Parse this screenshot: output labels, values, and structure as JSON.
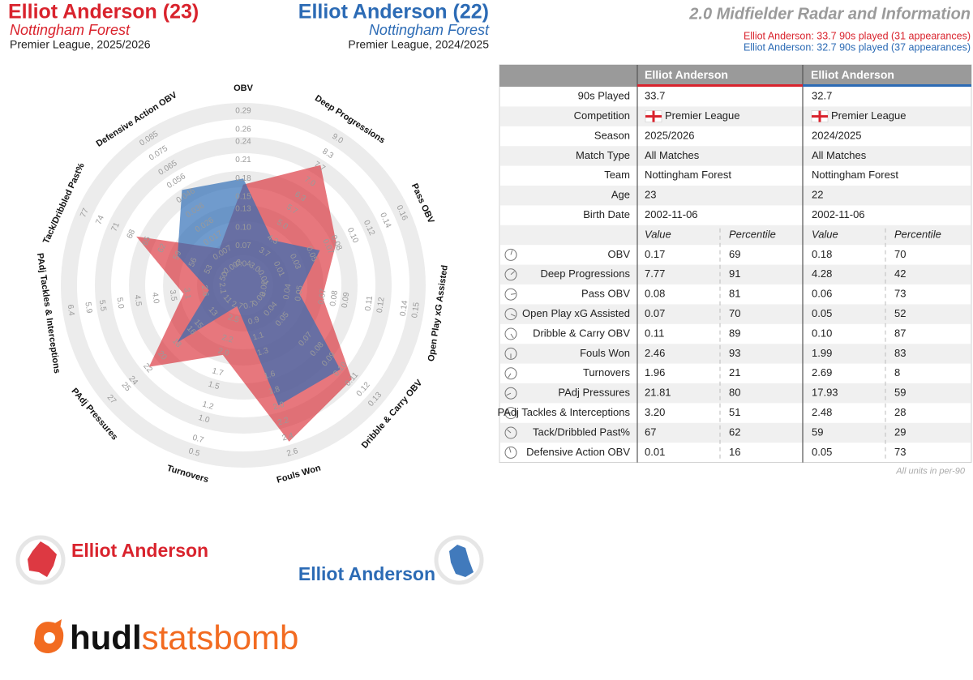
{
  "header": {
    "left": {
      "name": "Elliot Anderson (23)",
      "team": "Nottingham Forest",
      "competition": "Premier League, 2025/2026"
    },
    "right": {
      "name": "Elliot Anderson (22)",
      "team": "Nottingham Forest",
      "competition": "Premier League, 2024/2025"
    },
    "title": "2.0 Midfielder Radar and Information",
    "subtitles": [
      "Elliot Anderson: 33.7 90s played (31 appearances)",
      "Elliot Anderson: 32.7 90s played (37 appearances)"
    ]
  },
  "chart_data": {
    "type": "radar",
    "axes": [
      {
        "label": "OBV",
        "lim": [
          0.04,
          0.29
        ],
        "ticks": [
          0.04,
          0.07,
          {
            "value": 0.1,
            "label": "0.10"
          },
          0.13,
          0.15,
          0.18,
          0.21,
          0.24,
          0.26,
          0.29
        ]
      },
      {
        "label": "Deep Progressions",
        "lim": [
          3,
          9
        ],
        "ticks": [
          {
            "value": 3,
            "label": "3.0"
          },
          3.7,
          4.3,
          {
            "value": 5,
            "label": "5.0"
          },
          5.7,
          6.3,
          {
            "value": 7,
            "label": "7.0"
          },
          7.7,
          8.3,
          {
            "value": 9,
            "label": "9.0"
          }
        ]
      },
      {
        "label": "Pass OBV",
        "lim": [
          -0.01,
          0.16
        ],
        "ticks": [
          -0.01,
          0.01,
          0.03,
          0.05,
          0.07,
          0.08,
          {
            "value": 0.1,
            "label": "0.10"
          },
          0.12,
          0.14,
          0.16
        ]
      },
      {
        "label": "Open Play xG Assisted",
        "lim": [
          0.02,
          0.15
        ],
        "ticks": [
          0.02,
          0.04,
          0.05,
          0.07,
          0.08,
          0.09,
          0.11,
          0.12,
          0.14,
          0.15
        ]
      },
      {
        "label": "Dribble & Carry OBV",
        "lim": [
          0.03,
          0.13
        ],
        "ticks": [
          0.03,
          0.04,
          0.05,
          0.07,
          0.08,
          0.09,
          {
            "value": 0.1,
            "label": "0.10"
          },
          0.11,
          0.12,
          0.13
        ]
      },
      {
        "label": "Fouls Won",
        "lim": [
          0.7,
          2.6
        ],
        "ticks": [
          0.7,
          0.9,
          1.1,
          1.3,
          1.6,
          1.8,
          {
            "value": 2,
            "label": "2.0"
          },
          2.2,
          2.4,
          2.6
        ]
      },
      {
        "label": "Turnovers",
        "lim": [
          2.7,
          0.5
        ],
        "ticks": [
          2.7,
          2.5,
          2.2,
          {
            "value": 2,
            "label": "2.0"
          },
          1.7,
          1.5,
          1.2,
          {
            "value": 1,
            "label": "1.0"
          },
          0.7,
          0.5
        ]
      },
      {
        "label": "PAdj Pressures",
        "lim": [
          11,
          27
        ],
        "ticks": [
          11,
          13,
          15,
          16,
          18,
          20,
          22,
          24,
          25,
          27
        ]
      },
      {
        "label": "PAdj Tackles & Interceptions",
        "lim": [
          2.1,
          6.4
        ],
        "ticks": [
          2.1,
          2.6,
          3.1,
          3.5,
          {
            "value": 4,
            "label": "4.0"
          },
          4.5,
          {
            "value": 5,
            "label": "5.0"
          },
          5.5,
          5.9,
          6.4
        ]
      },
      {
        "label": "Tack/Dribbled Past%",
        "lim": [
          50,
          77
        ],
        "ticks": [
          50,
          53,
          56,
          59,
          62,
          65,
          68,
          71,
          74,
          77
        ]
      },
      {
        "label": "Defensive Action OBV",
        "lim": [
          -0.003,
          0.085
        ],
        "ticks": [
          -0.003,
          0.007,
          0.017,
          0.026,
          0.036,
          0.046,
          0.056,
          0.065,
          0.075,
          0.085
        ]
      }
    ],
    "series": [
      {
        "name": "Elliot Anderson",
        "color": "#d9232d",
        "values": [
          0.17,
          7.77,
          0.08,
          0.07,
          0.11,
          2.46,
          1.96,
          21.81,
          3.2,
          67,
          0.01
        ]
      },
      {
        "name": "Elliot Anderson",
        "color": "#2c6bb5",
        "values": [
          0.18,
          4.28,
          0.06,
          0.05,
          0.1,
          1.99,
          2.69,
          17.93,
          2.48,
          59,
          0.05
        ]
      }
    ]
  },
  "table": {
    "columns": [
      "Elliot Anderson",
      "Elliot Anderson"
    ],
    "info_rows": [
      [
        "90s Played",
        "33.7",
        "32.7"
      ],
      [
        "Competition",
        "Premier League",
        "Premier League"
      ],
      [
        "Season",
        "2025/2026",
        "2024/2025"
      ],
      [
        "Match Type",
        "All Matches",
        "All Matches"
      ],
      [
        "Team",
        "Nottingham Forest",
        "Nottingham Forest"
      ],
      [
        "Age",
        "23",
        "22"
      ],
      [
        "Birth Date",
        "2002-11-06",
        "2002-11-06"
      ]
    ],
    "subheader": [
      "Value",
      "Percentile",
      "Value",
      "Percentile"
    ],
    "stat_rows": [
      {
        "label": "OBV",
        "cells": [
          "0.17",
          "69",
          "0.18",
          "70"
        ],
        "colors": [
          "#c8640f",
          "#c8640f"
        ]
      },
      {
        "label": "Deep Progressions",
        "cells": [
          "7.77",
          "91",
          "4.28",
          "42"
        ],
        "colors": [
          "#a3151a",
          "#2a9aaa"
        ]
      },
      {
        "label": "Pass OBV",
        "cells": [
          "0.08",
          "81",
          "0.06",
          "73"
        ],
        "colors": [
          "#b0321a",
          "#b85a10"
        ]
      },
      {
        "label": "Open Play xG Assisted",
        "cells": [
          "0.07",
          "70",
          "0.05",
          "52"
        ],
        "colors": [
          "#c8640f",
          "#c8a010"
        ]
      },
      {
        "label": "Dribble & Carry OBV",
        "cells": [
          "0.11",
          "89",
          "0.10",
          "87"
        ],
        "colors": [
          "#a3151a",
          "#a3201a"
        ]
      },
      {
        "label": "Fouls Won",
        "cells": [
          "2.46",
          "93",
          "1.99",
          "83"
        ],
        "colors": [
          "#a3151a",
          "#a8301a"
        ]
      },
      {
        "label": "Turnovers",
        "cells": [
          "1.96",
          "21",
          "2.69",
          "8"
        ],
        "colors": [
          "#1a3a6e",
          "#1a2a5e"
        ]
      },
      {
        "label": "PAdj Pressures",
        "cells": [
          "21.81",
          "80",
          "17.93",
          "59"
        ],
        "colors": [
          "#b03a12",
          "#c89010"
        ]
      },
      {
        "label": "PAdj Tackles & Interceptions",
        "cells": [
          "3.20",
          "51",
          "2.48",
          "28"
        ],
        "colors": [
          "#b0a010",
          "#2a6a9a"
        ]
      },
      {
        "label": "Tack/Dribbled Past%",
        "cells": [
          "67",
          "62",
          "59",
          "29"
        ],
        "colors": [
          "#c08a10",
          "#2a6a9a"
        ]
      },
      {
        "label": "Defensive Action OBV",
        "cells": [
          "0.01",
          "16",
          "0.05",
          "73"
        ],
        "colors": [
          "#1a3a6e",
          "#b85a10"
        ]
      }
    ],
    "footnote": "All units in per-90"
  },
  "logo": {
    "parts": [
      "hudl",
      "statsbomb"
    ]
  }
}
